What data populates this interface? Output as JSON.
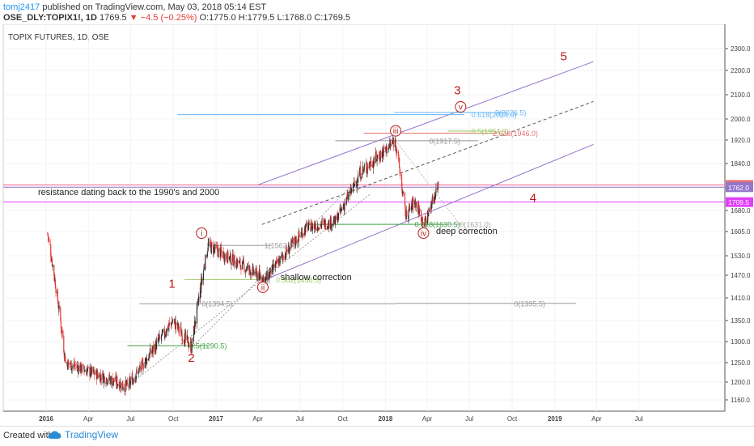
{
  "header": {
    "author": "tomj2417",
    "published": "published on TradingView.com, May 03, 2018 05:14 EST",
    "symbol": "OSE_DLY:TOPIX1!, 1D",
    "last": "1769.5",
    "change": "▼ −4.5 (−0.25%)",
    "ohlc": "O:1775.0 H:1779.5 L:1768.0 C:1769.5"
  },
  "chart_title": "TOPIX FUTURES, 1D, OSE",
  "footer": {
    "created": "Created with",
    "brand": "TradingView"
  },
  "colors": {
    "up": "#2e2e2e",
    "down": "#e53935",
    "wave": "#b71c1c",
    "channel": "#9575cd",
    "magenta": "#e040fb",
    "pink": "#f06292"
  },
  "chart_data": {
    "type": "candlestick",
    "title": "TOPIX FUTURES, 1D, OSE",
    "x_axis_labels": [
      "2016",
      "Apr",
      "Jul",
      "Oct",
      "2017",
      "Apr",
      "Jul",
      "Oct",
      "2018",
      "Apr",
      "Jul",
      "Oct",
      "2019",
      "Apr",
      "Jul"
    ],
    "y_axis_labels": [
      "2300.0",
      "2200.0",
      "2100.0",
      "2000.0",
      "1920.0",
      "1840.0",
      "1760.0",
      "1680.0",
      "1605.0",
      "1530.0",
      "1470.0",
      "1410.0",
      "1350.0",
      "1300.0",
      "1250.0",
      "1200.0",
      "1160.0"
    ],
    "price_badges": [
      {
        "value": "1769.5",
        "color": "#e57373"
      },
      {
        "value": "1762.0",
        "color": "#9575cd"
      },
      {
        "value": "1709.5",
        "color": "#e040fb"
      }
    ],
    "ylim": [
      1130,
      2330
    ],
    "key_points": [
      {
        "date": "2016-01-04",
        "price": 1600
      },
      {
        "date": "2016-02-12",
        "price": 1250
      },
      {
        "date": "2016-06-24",
        "price": 1190
      },
      {
        "date": "2016-09-30",
        "price": 1350
      },
      {
        "date": "2016-11-09",
        "price": 1285
      },
      {
        "date": "2016-12-15",
        "price": 1562
      },
      {
        "date": "2017-04-17",
        "price": 1458.5
      },
      {
        "date": "2017-07-15",
        "price": 1620
      },
      {
        "date": "2017-09-15",
        "price": 1640
      },
      {
        "date": "2017-11-08",
        "price": 1810
      },
      {
        "date": "2018-01-23",
        "price": 1917.5
      },
      {
        "date": "2018-02-14",
        "price": 1660
      },
      {
        "date": "2018-03-05",
        "price": 1715
      },
      {
        "date": "2018-03-26",
        "price": 1630.5
      },
      {
        "date": "2018-04-25",
        "price": 1775
      }
    ],
    "fib_levels": [
      {
        "label": "0(1394.5)",
        "value": 1394.5
      },
      {
        "label": "0(1395.5)",
        "value": 1395.5
      },
      {
        "label": "0.5(1290.5)",
        "value": 1290.5
      },
      {
        "label": "0.382(1458.5)",
        "value": 1458.5
      },
      {
        "label": "1(1562.0)",
        "value": 1562.0
      },
      {
        "label": "0.618(1630.5)",
        "value": 1630.5
      },
      {
        "label": "0(1631.0)",
        "value": 1631.0
      },
      {
        "label": "0(1917.5)",
        "value": 1917.5
      },
      {
        "label": "0.5(1954.0)",
        "value": 1954.0
      },
      {
        "label": "2.618(1946.0)",
        "value": 1946.0
      },
      {
        "label": "0.618(2018.0)",
        "value": 2018.0
      },
      {
        "label": "3(2026.5)",
        "value": 2026.5
      }
    ],
    "wave_labels": [
      "1",
      "2",
      "i",
      "ii",
      "iii",
      "iv",
      "v",
      "3",
      "4",
      "5"
    ],
    "annotations": [
      "resistance dating back to the 1990's and 2000",
      "shallow correction",
      "deep correction"
    ]
  }
}
